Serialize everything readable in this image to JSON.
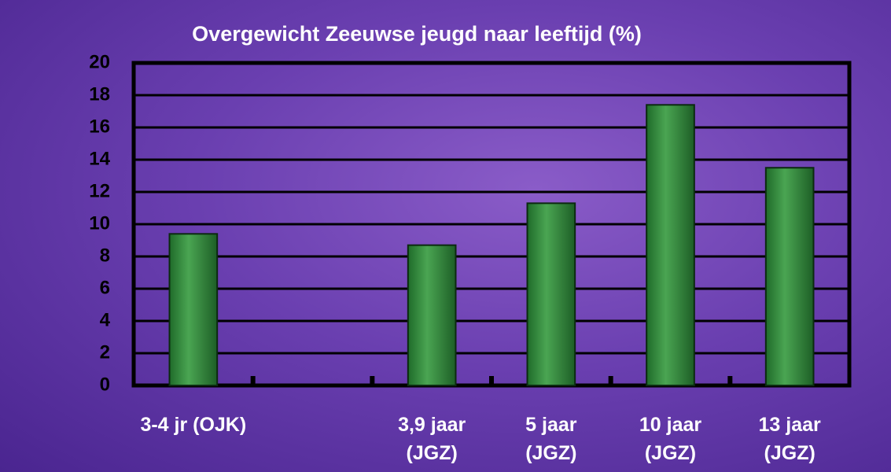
{
  "chart_data": {
    "type": "bar",
    "title": "Overgewicht Zeeuwse jeugd naar leeftijd (%)",
    "categories": [
      "3-4 jr (OJK)",
      null,
      "3,9 jaar\n(JGZ)",
      "5 jaar\n(JGZ)",
      "10 jaar\n(JGZ)",
      "13 jaar\n(JGZ)"
    ],
    "values": [
      9.4,
      null,
      8.7,
      11.3,
      17.4,
      13.5
    ],
    "color": "#2e8b3a",
    "ylim": [
      0,
      20
    ],
    "yticks": [
      0,
      2,
      4,
      6,
      8,
      10,
      12,
      14,
      16,
      18,
      20
    ],
    "grid": true
  }
}
